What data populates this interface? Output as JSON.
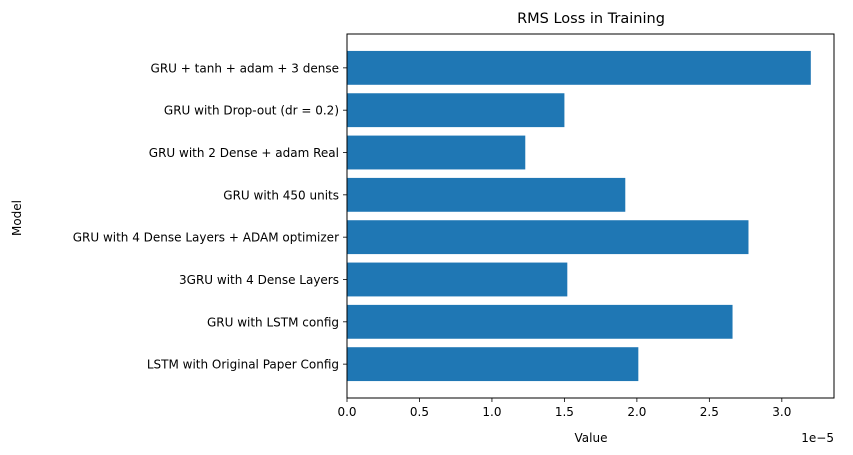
{
  "chart_data": {
    "type": "bar",
    "orientation": "horizontal",
    "title": "RMS Loss in Training",
    "xlabel": "Value",
    "ylabel": "Model",
    "x_scale_label": "1e−5",
    "categories": [
      "LSTM with Original Paper Config",
      "GRU with LSTM config",
      "3GRU with 4 Dense Layers",
      "GRU with 4 Dense Layers + ADAM optimizer",
      "GRU with 450 units",
      "GRU with 2 Dense + adam Real",
      "GRU with Drop-out (dr = 0.2)",
      "GRU + tanh + adam + 3 dense"
    ],
    "values": [
      2.01,
      2.66,
      1.52,
      2.77,
      1.92,
      1.23,
      1.5,
      3.2
    ],
    "value_multiplier": 1e-05,
    "xlim": [
      0,
      3.36
    ],
    "xticks": [
      0.0,
      0.5,
      1.0,
      1.5,
      2.0,
      2.5,
      3.0
    ],
    "xtick_labels": [
      "0.0",
      "0.5",
      "1.0",
      "1.5",
      "2.0",
      "2.5",
      "3.0"
    ],
    "grid": false,
    "colors": {
      "bar": "#1f77b4",
      "axes": "#000000",
      "background": "#ffffff"
    }
  }
}
